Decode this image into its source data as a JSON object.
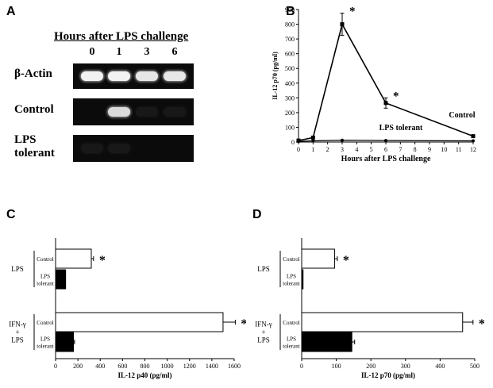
{
  "panel_A": {
    "letter": "A",
    "title": "Hours after LPS challenge",
    "lanes": [
      "0",
      "1",
      "3",
      "6"
    ],
    "rows": [
      {
        "label": "β-Actin",
        "band_intensity": [
          0.95,
          0.95,
          0.9,
          0.9
        ]
      },
      {
        "label": "Control",
        "band_intensity": [
          0.0,
          0.85,
          0.05,
          0.05
        ]
      },
      {
        "label_lines": [
          "LPS",
          "tolerant"
        ],
        "band_intensity": [
          0.05,
          0.05,
          0.0,
          0.0
        ]
      }
    ]
  },
  "panel_B": {
    "letter": "B"
  },
  "panel_C": {
    "letter": "C"
  },
  "panel_D": {
    "letter": "D"
  },
  "chart_data": [
    {
      "type": "line",
      "x": [
        0,
        1,
        3,
        6,
        12
      ],
      "series": [
        {
          "name": "Control",
          "values": [
            10,
            30,
            800,
            265,
            40
          ],
          "errors": [
            0,
            0,
            75,
            35,
            0
          ]
        },
        {
          "name": "LPS tolerant",
          "values": [
            5,
            8,
            12,
            10,
            8
          ],
          "errors": [
            0,
            0,
            0,
            0,
            0
          ]
        }
      ],
      "xlabel": "Hours after LPS challenge",
      "ylabel": "IL-12 p70  (pg/ml)",
      "xlim": [
        0,
        12
      ],
      "ylim": [
        0,
        900
      ],
      "xticks": [
        0,
        1,
        2,
        3,
        4,
        5,
        6,
        7,
        8,
        9,
        10,
        11,
        12
      ],
      "yticks": [
        0,
        100,
        200,
        300,
        400,
        500,
        600,
        700,
        800,
        900
      ],
      "significance": [
        {
          "series": "Control",
          "x": 3,
          "mark": "*"
        },
        {
          "series": "Control",
          "x": 6,
          "mark": "*"
        }
      ]
    },
    {
      "type": "bar",
      "orientation": "horizontal",
      "groups": [
        {
          "label_lines": [
            "LPS"
          ],
          "bars": [
            {
              "label_lines": [
                "Control"
              ],
              "value": 320,
              "error": 20,
              "fill": "white",
              "mark": "*"
            },
            {
              "label_lines": [
                "LPS",
                "tolerant"
              ],
              "value": 90,
              "error": 0,
              "fill": "black",
              "mark": ""
            }
          ]
        },
        {
          "label_lines": [
            "IFN-γ",
            "+",
            "LPS"
          ],
          "bars": [
            {
              "label_lines": [
                "Control"
              ],
              "value": 1500,
              "error": 110,
              "fill": "white",
              "mark": "*"
            },
            {
              "label_lines": [
                "LPS",
                "tolerant"
              ],
              "value": 160,
              "error": 10,
              "fill": "black",
              "mark": ""
            }
          ]
        }
      ],
      "xlabel": "IL-12 p40  (pg/ml)",
      "xlim": [
        0,
        1600
      ],
      "xticks": [
        0,
        200,
        400,
        600,
        800,
        1000,
        1200,
        1400,
        1600
      ]
    },
    {
      "type": "bar",
      "orientation": "horizontal",
      "groups": [
        {
          "label_lines": [
            "LPS"
          ],
          "bars": [
            {
              "label_lines": [
                "Control"
              ],
              "value": 95,
              "error": 8,
              "fill": "white",
              "mark": "*"
            },
            {
              "label_lines": [
                "LPS",
                "tolerant"
              ],
              "value": 4,
              "error": 0,
              "fill": "black",
              "mark": ""
            }
          ]
        },
        {
          "label_lines": [
            "IFN-γ",
            "+",
            "LPS"
          ],
          "bars": [
            {
              "label_lines": [
                "Control"
              ],
              "value": 465,
              "error": 30,
              "fill": "white",
              "mark": "*"
            },
            {
              "label_lines": [
                "LPS",
                "tolerant"
              ],
              "value": 145,
              "error": 8,
              "fill": "black",
              "mark": ""
            }
          ]
        }
      ],
      "xlabel": "IL-12 p70  (pg/ml)",
      "xlim": [
        0,
        500
      ],
      "xticks": [
        0,
        100,
        200,
        300,
        400,
        500
      ]
    }
  ]
}
